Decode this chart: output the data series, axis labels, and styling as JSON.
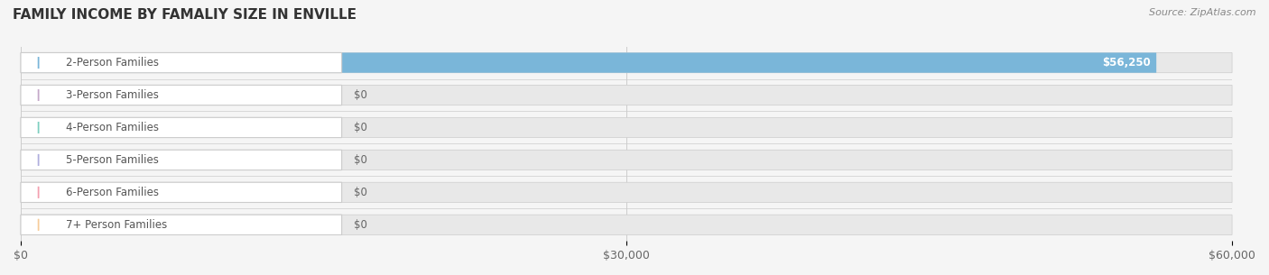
{
  "title": "FAMILY INCOME BY FAMALIY SIZE IN ENVILLE",
  "source": "Source: ZipAtlas.com",
  "categories": [
    "2-Person Families",
    "3-Person Families",
    "4-Person Families",
    "5-Person Families",
    "6-Person Families",
    "7+ Person Families"
  ],
  "values": [
    56250,
    0,
    0,
    0,
    0,
    0
  ],
  "bar_colors": [
    "#7ab6d9",
    "#c4a8c8",
    "#7ecfc0",
    "#b0aede",
    "#f4a0b0",
    "#f7cc9a"
  ],
  "label_bg_colors": [
    "#d6eaf5",
    "#e8ddf0",
    "#c8ede8",
    "#dddcf5",
    "#fad5dc",
    "#fde8c8"
  ],
  "value_labels": [
    "$56,250",
    "$0",
    "$0",
    "$0",
    "$0",
    "$0"
  ],
  "xlim": [
    0,
    60000
  ],
  "xticks": [
    0,
    30000,
    60000
  ],
  "xticklabels": [
    "$0",
    "$30,000",
    "$60,000"
  ],
  "background_color": "#f5f5f5",
  "bar_bg_color": "#e8e8e8",
  "title_fontsize": 11,
  "source_fontsize": 8,
  "label_fontsize": 8.5,
  "value_fontsize": 8.5
}
